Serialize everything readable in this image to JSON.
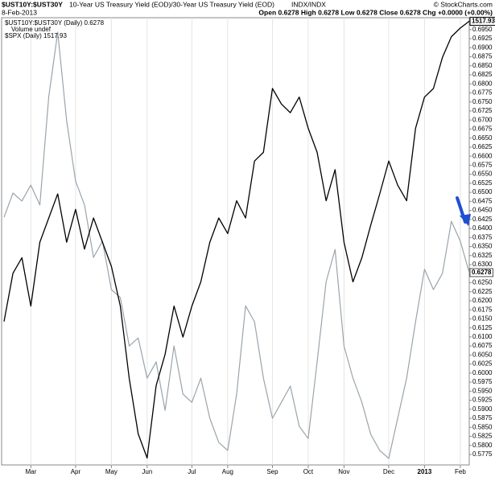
{
  "chart_data": {
    "type": "line",
    "title": "$UST10Y:$UST30Y",
    "subtitle": "10-Year US Treasury Yield (EOD)/30-Year US Treasury Yield (EOD)",
    "exchange": "INDX/INDX",
    "credit": "© StockCharts.com",
    "date": "8-Feb-2013",
    "quote": "Open 0.6278  High 0.6278  Low 0.6278  Close 0.6278  Chg +0.0000 (+0.00%)",
    "volume_note": "Volume undef",
    "categories": [
      null,
      null,
      null,
      "Mar",
      null,
      null,
      null,
      null,
      "Apr",
      null,
      null,
      null,
      "May",
      null,
      null,
      null,
      "Jun",
      null,
      null,
      null,
      null,
      "Jul",
      null,
      null,
      null,
      "Aug",
      null,
      null,
      null,
      null,
      "Sep",
      null,
      null,
      null,
      "Oct",
      null,
      null,
      null,
      "Nov",
      null,
      null,
      null,
      null,
      "Dec",
      null,
      null,
      null,
      "2013",
      null,
      null,
      null,
      "Feb",
      null
    ],
    "series": [
      {
        "name": "$UST10Y:$UST30Y (Daily) 0.6278",
        "color": "#9aa4ab",
        "values": [
          0.6431,
          0.6498,
          0.6476,
          0.652,
          0.6465,
          0.6765,
          0.6943,
          0.6698,
          0.6531,
          0.6465,
          0.632,
          0.6365,
          0.6231,
          0.6209,
          0.6075,
          0.6097,
          0.5986,
          0.6031,
          0.5897,
          0.6075,
          0.5942,
          0.5919,
          0.5986,
          0.5875,
          0.5808,
          0.5786,
          0.5942,
          0.6186,
          0.6142,
          0.5986,
          0.5875,
          0.5919,
          0.5964,
          0.5853,
          0.5819,
          0.6031,
          0.6253,
          0.6342,
          0.6075,
          0.5986,
          0.5919,
          0.583,
          0.5786,
          0.5764,
          0.5875,
          0.5986,
          0.6142,
          0.6287,
          0.6231,
          0.6276,
          0.642,
          0.6365,
          0.6278
        ]
      },
      {
        "name": "$SPX (Daily) 1517.93",
        "color": "#000000",
        "axis": "y2",
        "values": [
          1344,
          1372,
          1381,
          1353,
          1390,
          1404,
          1418,
          1390,
          1409,
          1386,
          1404,
          1390,
          1376,
          1353,
          1311,
          1279,
          1265,
          1307,
          1325,
          1353,
          1335,
          1353,
          1367,
          1390,
          1404,
          1395,
          1414,
          1404,
          1437,
          1442,
          1479,
          1470,
          1465,
          1474,
          1456,
          1442,
          1414,
          1432,
          1390,
          1367,
          1381,
          1400,
          1418,
          1437,
          1423,
          1414,
          1456,
          1474,
          1479,
          1497,
          1509,
          1514,
          1517.93
        ]
      }
    ],
    "ylim": [
      0.5746,
      0.6983
    ],
    "y2lim": [
      1261,
      1520
    ],
    "yticks": [
      0.5775,
      {
        "value": 0.58,
        "label": "0.5800"
      },
      0.5825,
      {
        "value": 0.585,
        "label": "0.5850"
      },
      0.5875,
      {
        "value": 0.59,
        "label": "0.5900"
      },
      0.5925,
      {
        "value": 0.595,
        "label": "0.5950"
      },
      0.5975,
      {
        "value": 0.6,
        "label": "0.6000"
      },
      0.6025,
      {
        "value": 0.605,
        "label": "0.6050"
      },
      0.6075,
      {
        "value": 0.61,
        "label": "0.6100"
      },
      0.6125,
      {
        "value": 0.615,
        "label": "0.6150"
      },
      0.6175,
      {
        "value": 0.62,
        "label": "0.6200"
      },
      0.6225,
      {
        "value": 0.625,
        "label": "0.6250"
      },
      0.6275,
      {
        "value": 0.63,
        "label": "0.6300"
      },
      0.6325,
      {
        "value": 0.635,
        "label": "0.6350"
      },
      0.6375,
      {
        "value": 0.64,
        "label": "0.6400"
      },
      0.6425,
      {
        "value": 0.645,
        "label": "0.6450"
      },
      0.6475,
      {
        "value": 0.65,
        "label": "0.6500"
      },
      0.6525,
      {
        "value": 0.655,
        "label": "0.6550"
      },
      0.6575,
      {
        "value": 0.66,
        "label": "0.6600"
      },
      0.6625,
      {
        "value": 0.665,
        "label": "0.6650"
      },
      0.6675,
      {
        "value": 0.67,
        "label": "0.6700"
      },
      0.6725,
      {
        "value": 0.675,
        "label": "0.6750"
      },
      0.6775,
      {
        "value": 0.68,
        "label": "0.6800"
      },
      0.6825,
      {
        "value": 0.685,
        "label": "0.6850"
      },
      0.6875,
      {
        "value": 0.69,
        "label": "0.6900"
      },
      0.6925,
      {
        "value": 0.695,
        "label": "0.6950"
      }
    ],
    "grid": true
  }
}
